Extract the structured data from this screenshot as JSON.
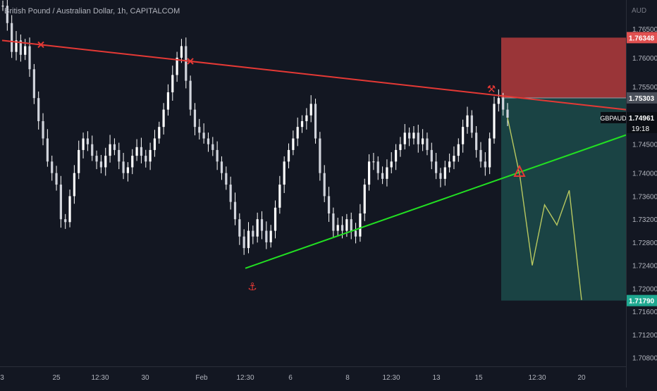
{
  "title": "British Pound / Australian Dollar, 1h, CAPITALCOM",
  "currency": "AUD",
  "colors": {
    "background": "#131722",
    "candle_body": "#ffffff",
    "resistance_line": "#e53935",
    "support_line": "#22e022",
    "projection_line": "#b8c860",
    "stop_zone": "#c84040",
    "target_zone": "#1e5a58",
    "price_axis_text": "#b2b5be"
  },
  "chart_data": {
    "type": "candlestick",
    "symbol": "GBPAUD",
    "ylim": [
      1.7065,
      1.77
    ],
    "y_ticks": [
      "1.76500",
      "1.76000",
      "1.75500",
      "1.74500",
      "1.74000",
      "1.73600",
      "1.73200",
      "1.72800",
      "1.72400",
      "1.72000",
      "1.71600",
      "1.71200",
      "1.70800"
    ],
    "x_ticks": [
      "3",
      "25",
      "12:30",
      "30",
      "Feb",
      "12:30",
      "6",
      "8",
      "12:30",
      "13",
      "15",
      "12:30",
      "20"
    ],
    "price_path": [
      1.769,
      1.766,
      1.761,
      1.763,
      1.7605,
      1.762,
      1.758,
      1.753,
      1.749,
      1.746,
      1.742,
      1.74,
      1.738,
      1.732,
      1.7315,
      1.736,
      1.74,
      1.744,
      1.746,
      1.745,
      1.743,
      1.742,
      1.741,
      1.743,
      1.745,
      1.744,
      1.742,
      1.74,
      1.741,
      1.743,
      1.7445,
      1.743,
      1.742,
      1.744,
      1.746,
      1.748,
      1.751,
      1.754,
      1.757,
      1.76,
      1.762,
      1.756,
      1.751,
      1.748,
      1.747,
      1.746,
      1.745,
      1.744,
      1.742,
      1.74,
      1.738,
      1.735,
      1.732,
      1.729,
      1.727,
      1.73,
      1.729,
      1.732,
      1.73,
      1.728,
      1.73,
      1.734,
      1.738,
      1.742,
      1.744,
      1.746,
      1.748,
      1.749,
      1.75,
      1.752,
      1.746,
      1.74,
      1.736,
      1.733,
      1.73,
      1.731,
      1.73,
      1.732,
      1.73,
      1.729,
      1.733,
      1.738,
      1.742,
      1.742,
      1.74,
      1.739,
      1.741,
      1.742,
      1.744,
      1.745,
      1.747,
      1.746,
      1.747,
      1.745,
      1.746,
      1.744,
      1.742,
      1.74,
      1.739,
      1.741,
      1.742,
      1.743,
      1.745,
      1.748,
      1.75,
      1.747,
      1.744,
      1.742,
      1.741,
      1.746,
      1.752,
      1.753,
      1.751,
      1.7496
    ],
    "price_path_range": [
      "3",
      "15"
    ],
    "lines": [
      {
        "name": "resistance",
        "from": [
          "3",
          1.763
        ],
        "to": [
          "20",
          1.751
        ]
      },
      {
        "name": "support",
        "from": [
          "Feb 12:30",
          1.7235
        ],
        "to": [
          "20",
          1.7466
        ]
      }
    ],
    "position": {
      "type": "short",
      "entry": 1.75303,
      "stop": 1.76348,
      "target": 1.7179
    },
    "projection_path": [
      1.7496,
      1.7395,
      1.724,
      1.7345,
      1.731,
      1.737,
      1.718
    ],
    "projection_range": [
      "15",
      "20"
    ],
    "price_labels": [
      {
        "text": "1.76348",
        "kind": "stop"
      },
      {
        "text": "1.75303",
        "kind": "entry"
      },
      {
        "text": "1.74961",
        "kind": "last"
      },
      {
        "text": "1.71790",
        "kind": "target"
      }
    ],
    "symbol_tag": "GBPAUD",
    "countdown": "19:18"
  }
}
